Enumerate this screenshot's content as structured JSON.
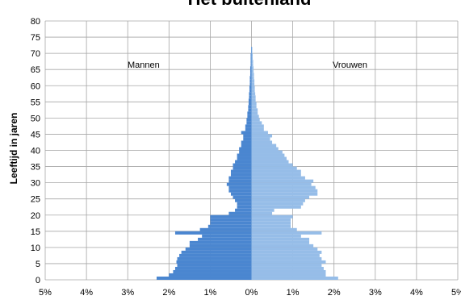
{
  "chart_data": {
    "type": "bar",
    "title": "Het buitenland",
    "ylabel": "Leeftijd in jaren",
    "xlabel": "",
    "x_ticks": [
      "5%",
      "4%",
      "3%",
      "2%",
      "1%",
      "0%",
      "1%",
      "2%",
      "3%",
      "4%",
      "5%"
    ],
    "xlim": [
      -5,
      5
    ],
    "ylim": [
      0,
      80
    ],
    "y_ticks": [
      0,
      5,
      10,
      15,
      20,
      25,
      30,
      35,
      40,
      45,
      50,
      55,
      60,
      65,
      70,
      75,
      80
    ],
    "grid": true,
    "annotations": {
      "left": "Mannen",
      "right": "Vrouwen"
    },
    "colors": {
      "men": "#4a86d0",
      "women": "#96bde8",
      "grid": "#a6a6a6"
    },
    "ages": [
      0,
      1,
      2,
      3,
      4,
      5,
      6,
      7,
      8,
      9,
      10,
      11,
      12,
      13,
      14,
      15,
      16,
      17,
      18,
      19,
      20,
      21,
      22,
      23,
      24,
      25,
      26,
      27,
      28,
      29,
      30,
      31,
      32,
      33,
      34,
      35,
      36,
      37,
      38,
      39,
      40,
      41,
      42,
      43,
      44,
      45,
      46,
      47,
      48,
      49,
      50,
      51,
      52,
      53,
      54,
      55,
      56,
      57,
      58,
      59,
      60,
      61,
      62,
      63,
      64,
      65,
      66,
      67,
      68,
      69,
      70,
      71
    ],
    "series": [
      {
        "name": "Mannen",
        "values": [
          2.3,
          2.0,
          1.9,
          1.85,
          1.8,
          1.82,
          1.8,
          1.75,
          1.7,
          1.6,
          1.5,
          1.5,
          1.3,
          1.2,
          1.85,
          1.25,
          1.05,
          1.0,
          1.0,
          1.0,
          0.55,
          0.4,
          0.35,
          0.35,
          0.4,
          0.45,
          0.5,
          0.55,
          0.55,
          0.6,
          0.55,
          0.55,
          0.5,
          0.5,
          0.45,
          0.45,
          0.4,
          0.35,
          0.35,
          0.3,
          0.3,
          0.25,
          0.25,
          0.2,
          0.2,
          0.25,
          0.15,
          0.15,
          0.12,
          0.12,
          0.1,
          0.1,
          0.08,
          0.08,
          0.07,
          0.07,
          0.06,
          0.06,
          0.05,
          0.05,
          0.04,
          0.04,
          0.04,
          0.03,
          0.03,
          0.03,
          0.02,
          0.02,
          0.02,
          0.02,
          0.01,
          0.01
        ]
      },
      {
        "name": "Vrouwen",
        "values": [
          2.1,
          1.8,
          1.8,
          1.75,
          1.7,
          1.8,
          1.7,
          1.65,
          1.7,
          1.6,
          1.5,
          1.4,
          1.4,
          1.2,
          1.7,
          1.1,
          0.95,
          0.95,
          0.95,
          1.0,
          0.5,
          0.55,
          1.2,
          1.25,
          1.3,
          1.4,
          1.6,
          1.6,
          1.55,
          1.45,
          1.5,
          1.3,
          1.2,
          1.2,
          1.1,
          1.0,
          0.9,
          0.85,
          0.8,
          0.75,
          0.65,
          0.6,
          0.5,
          0.45,
          0.5,
          0.4,
          0.3,
          0.3,
          0.25,
          0.2,
          0.18,
          0.15,
          0.15,
          0.12,
          0.12,
          0.1,
          0.1,
          0.09,
          0.08,
          0.08,
          0.07,
          0.07,
          0.06,
          0.06,
          0.05,
          0.05,
          0.04,
          0.04,
          0.03,
          0.03,
          0.02,
          0.02
        ]
      }
    ]
  }
}
